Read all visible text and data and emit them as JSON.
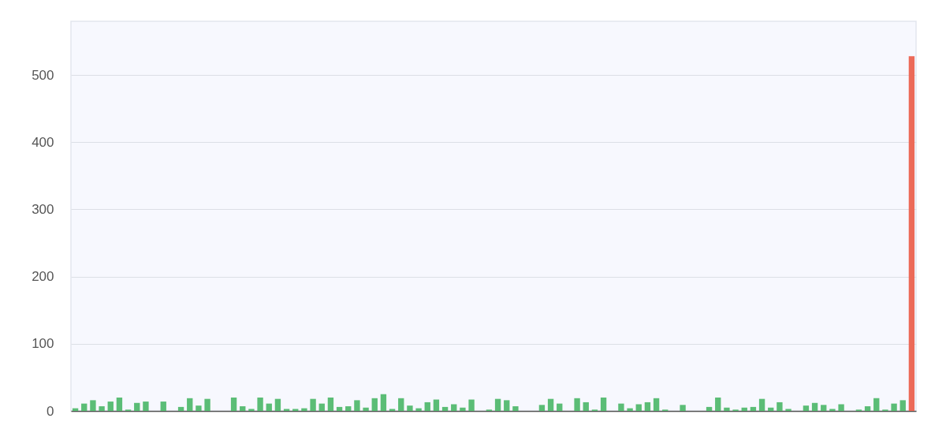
{
  "chart_data": {
    "type": "bar",
    "categories": [
      null,
      null,
      null,
      null,
      null,
      null,
      null,
      null,
      null,
      null,
      null,
      null,
      null,
      null,
      null,
      null,
      null,
      null,
      null,
      null,
      null,
      null,
      null,
      null,
      null,
      null,
      null,
      null,
      null,
      null,
      null,
      null,
      null,
      null,
      null,
      null,
      null,
      null,
      null,
      null,
      null,
      null,
      null,
      null,
      null,
      null,
      null,
      null,
      null,
      null,
      null,
      null,
      null,
      null,
      null,
      null,
      null,
      null,
      null,
      null,
      null,
      null,
      null,
      null,
      null,
      null,
      null,
      null,
      null,
      null,
      null,
      null,
      null,
      null,
      null,
      null,
      null,
      null,
      null,
      null,
      null,
      null,
      null,
      null,
      null,
      null,
      null,
      null,
      null,
      null,
      null,
      null,
      null,
      null,
      null,
      null
    ],
    "values": [
      4,
      11,
      16,
      7,
      14,
      20,
      2,
      12,
      14,
      null,
      14,
      null,
      6,
      19,
      8,
      18,
      null,
      null,
      20,
      7,
      3,
      20,
      11,
      18,
      3,
      3,
      4,
      18,
      11,
      20,
      6,
      7,
      16,
      5,
      19,
      25,
      3,
      19,
      8,
      4,
      13,
      17,
      6,
      10,
      5,
      17,
      null,
      2,
      18,
      16,
      7,
      null,
      null,
      9,
      18,
      11,
      null,
      19,
      13,
      2,
      20,
      null,
      11,
      4,
      10,
      13,
      19,
      2,
      null,
      9,
      null,
      null,
      6,
      20,
      5,
      2,
      5,
      6,
      18,
      5,
      13,
      3,
      null,
      8,
      12,
      9,
      3,
      10,
      null,
      2,
      7,
      19,
      2,
      11,
      16,
      528
    ],
    "colors": [
      "#5bbd76",
      "#5bbd76",
      "#5bbd76",
      "#5bbd76",
      "#5bbd76",
      "#5bbd76",
      "#5bbd76",
      "#5bbd76",
      "#5bbd76",
      "#5bbd76",
      "#5bbd76",
      "#5bbd76",
      "#5bbd76",
      "#5bbd76",
      "#5bbd76",
      "#5bbd76",
      "#5bbd76",
      "#5bbd76",
      "#5bbd76",
      "#5bbd76",
      "#5bbd76",
      "#5bbd76",
      "#5bbd76",
      "#5bbd76",
      "#5bbd76",
      "#5bbd76",
      "#5bbd76",
      "#5bbd76",
      "#5bbd76",
      "#5bbd76",
      "#5bbd76",
      "#5bbd76",
      "#5bbd76",
      "#5bbd76",
      "#5bbd76",
      "#5bbd76",
      "#5bbd76",
      "#5bbd76",
      "#5bbd76",
      "#5bbd76",
      "#5bbd76",
      "#5bbd76",
      "#5bbd76",
      "#5bbd76",
      "#5bbd76",
      "#5bbd76",
      "#5bbd76",
      "#5bbd76",
      "#5bbd76",
      "#5bbd76",
      "#5bbd76",
      "#5bbd76",
      "#5bbd76",
      "#5bbd76",
      "#5bbd76",
      "#5bbd76",
      "#5bbd76",
      "#5bbd76",
      "#5bbd76",
      "#5bbd76",
      "#5bbd76",
      "#5bbd76",
      "#5bbd76",
      "#5bbd76",
      "#5bbd76",
      "#5bbd76",
      "#5bbd76",
      "#5bbd76",
      "#5bbd76",
      "#5bbd76",
      "#5bbd76",
      "#5bbd76",
      "#5bbd76",
      "#5bbd76",
      "#5bbd76",
      "#5bbd76",
      "#5bbd76",
      "#5bbd76",
      "#5bbd76",
      "#5bbd76",
      "#5bbd76",
      "#5bbd76",
      "#5bbd76",
      "#5bbd76",
      "#5bbd76",
      "#5bbd76",
      "#5bbd76",
      "#5bbd76",
      "#5bbd76",
      "#5bbd76",
      "#5bbd76",
      "#5bbd76",
      "#5bbd76",
      "#5bbd76",
      "#5bbd76",
      "#ec6a58"
    ],
    "ylim": [
      0,
      580
    ],
    "yticks": [
      0,
      100,
      200,
      300,
      400,
      500
    ],
    "grid": "y",
    "tick_labels": "y"
  }
}
